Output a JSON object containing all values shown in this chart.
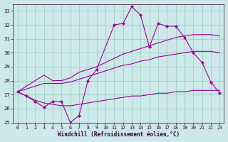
{
  "x": [
    0,
    1,
    2,
    3,
    4,
    5,
    6,
    7,
    8,
    9,
    10,
    11,
    12,
    13,
    14,
    15,
    16,
    17,
    18,
    19,
    20,
    21,
    22,
    23
  ],
  "line_jagged": [
    27.2,
    26.9,
    26.5,
    26.1,
    26.5,
    26.5,
    25.0,
    25.5,
    28.0,
    28.8,
    null,
    32.0,
    32.1,
    33.3,
    32.7,
    30.4,
    32.1,
    31.9,
    31.9,
    31.1,
    30.0,
    29.3,
    27.9,
    27.1
  ],
  "line_upper": [
    27.2,
    27.6,
    28.0,
    28.4,
    28.0,
    28.0,
    28.2,
    28.6,
    28.8,
    29.0,
    29.3,
    29.6,
    29.9,
    30.1,
    30.3,
    30.5,
    30.7,
    30.9,
    31.1,
    31.2,
    31.3,
    31.3,
    31.3,
    31.2
  ],
  "line_middle": [
    27.2,
    27.4,
    27.6,
    27.8,
    27.8,
    27.8,
    27.9,
    28.1,
    28.3,
    28.5,
    28.7,
    28.9,
    29.1,
    29.2,
    29.4,
    29.5,
    29.7,
    29.8,
    29.9,
    30.0,
    30.1,
    30.1,
    30.1,
    30.0
  ],
  "line_lower": [
    27.2,
    26.9,
    26.6,
    26.4,
    26.3,
    26.2,
    26.2,
    26.3,
    26.4,
    26.5,
    26.6,
    26.7,
    26.8,
    26.9,
    26.9,
    27.0,
    27.1,
    27.1,
    27.2,
    27.2,
    27.3,
    27.3,
    27.3,
    27.3
  ],
  "color": "#990099",
  "bg_color": "#cce8e8",
  "grid_color": "#99ccbb",
  "xlabel": "Windchill (Refroidissement éolien,°C)",
  "ylim": [
    25,
    33.5
  ],
  "xlim": [
    -0.5,
    23.5
  ],
  "yticks": [
    25,
    26,
    27,
    28,
    29,
    30,
    31,
    32,
    33
  ],
  "xticks": [
    0,
    1,
    2,
    3,
    4,
    5,
    6,
    7,
    8,
    9,
    10,
    11,
    12,
    13,
    14,
    15,
    16,
    17,
    18,
    19,
    20,
    21,
    22,
    23
  ]
}
